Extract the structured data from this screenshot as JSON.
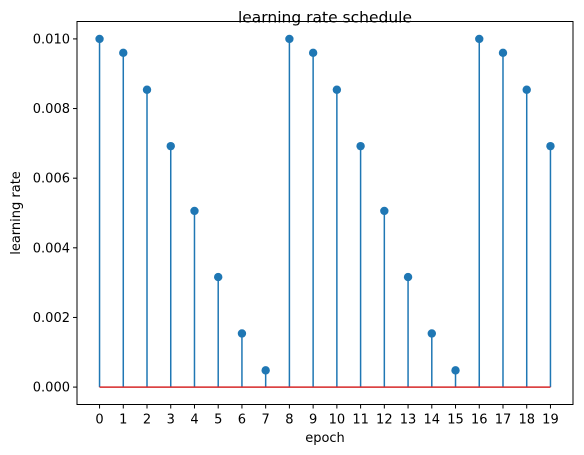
{
  "chart_data": {
    "type": "stem",
    "title": "learning rate schedule",
    "xlabel": "epoch",
    "ylabel": "learning rate",
    "x": [
      0,
      1,
      2,
      3,
      4,
      5,
      6,
      7,
      8,
      9,
      10,
      11,
      12,
      13,
      14,
      15,
      16,
      17,
      18,
      19
    ],
    "values": [
      0.01,
      0.0096,
      0.00854,
      0.00692,
      0.00506,
      0.00316,
      0.00154,
      0.00048,
      0.01,
      0.0096,
      0.00854,
      0.00692,
      0.00506,
      0.00316,
      0.00154,
      0.00048,
      0.01,
      0.0096,
      0.00854,
      0.00692
    ],
    "xlim": [
      -0.95,
      19.95
    ],
    "ylim": [
      -0.0005,
      0.0105
    ],
    "yticks": [
      "0.000",
      "0.002",
      "0.004",
      "0.006",
      "0.008",
      "0.010"
    ],
    "xticks": [
      "0",
      "1",
      "2",
      "3",
      "4",
      "5",
      "6",
      "7",
      "8",
      "9",
      "10",
      "11",
      "12",
      "13",
      "14",
      "15",
      "16",
      "17",
      "18",
      "19"
    ],
    "grid": false,
    "colors": {
      "stem": "#1f77b4",
      "marker": "#1f77b4",
      "baseline": "#d62728"
    }
  }
}
